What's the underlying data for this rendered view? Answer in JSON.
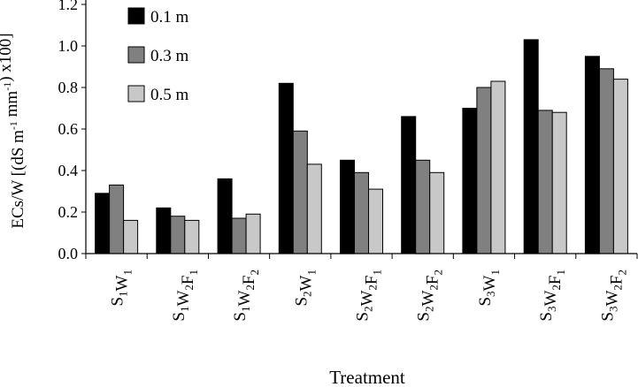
{
  "chart_data": {
    "type": "bar",
    "categories": [
      {
        "base": "S",
        "parts": [
          [
            "S",
            "1"
          ],
          [
            "W",
            "1"
          ]
        ]
      },
      {
        "base": "S",
        "parts": [
          [
            "S",
            "1"
          ],
          [
            "W",
            "2"
          ],
          [
            "F",
            "1"
          ]
        ]
      },
      {
        "base": "S",
        "parts": [
          [
            "S",
            "1"
          ],
          [
            "W",
            "2"
          ],
          [
            "F",
            "2"
          ]
        ]
      },
      {
        "base": "S",
        "parts": [
          [
            "S",
            "2"
          ],
          [
            "W",
            "1"
          ]
        ]
      },
      {
        "base": "S",
        "parts": [
          [
            "S",
            "2"
          ],
          [
            "W",
            "2"
          ],
          [
            "F",
            "1"
          ]
        ]
      },
      {
        "base": "S",
        "parts": [
          [
            "S",
            "2"
          ],
          [
            "W",
            "2"
          ],
          [
            "F",
            "2"
          ]
        ]
      },
      {
        "base": "S",
        "parts": [
          [
            "S",
            "3"
          ],
          [
            "W",
            "1"
          ]
        ]
      },
      {
        "base": "S",
        "parts": [
          [
            "S",
            "3"
          ],
          [
            "W",
            "2"
          ],
          [
            "F",
            "1"
          ]
        ]
      },
      {
        "base": "S",
        "parts": [
          [
            "S",
            "3"
          ],
          [
            "W",
            "2"
          ],
          [
            "F",
            "2"
          ]
        ]
      }
    ],
    "series": [
      {
        "name": "0.1 m",
        "color": "#000000",
        "values": [
          0.29,
          0.22,
          0.36,
          0.82,
          0.45,
          0.66,
          0.7,
          1.03,
          0.95
        ]
      },
      {
        "name": "0.3 m",
        "color": "#808080",
        "values": [
          0.33,
          0.18,
          0.17,
          0.59,
          0.39,
          0.45,
          0.8,
          0.69,
          0.89
        ]
      },
      {
        "name": "0.5 m",
        "color": "#c8c8c8",
        "values": [
          0.16,
          0.16,
          0.19,
          0.43,
          0.31,
          0.39,
          0.83,
          0.68,
          0.84
        ]
      }
    ],
    "xlabel": "Treatment",
    "ylabel_parts": [
      {
        "t": "ECs/W [(dS m"
      },
      {
        "t": "-1",
        "sup": true
      },
      {
        "t": " mm"
      },
      {
        "t": "-1",
        "sup": true
      },
      {
        "t": ") x100]"
      }
    ],
    "ylim": [
      0,
      1.2
    ],
    "yticks": [
      "0.0",
      "0.2",
      "0.4",
      "0.6",
      "0.8",
      "1.0",
      "1.2"
    ],
    "legend_position": "top-left",
    "grid": false
  }
}
